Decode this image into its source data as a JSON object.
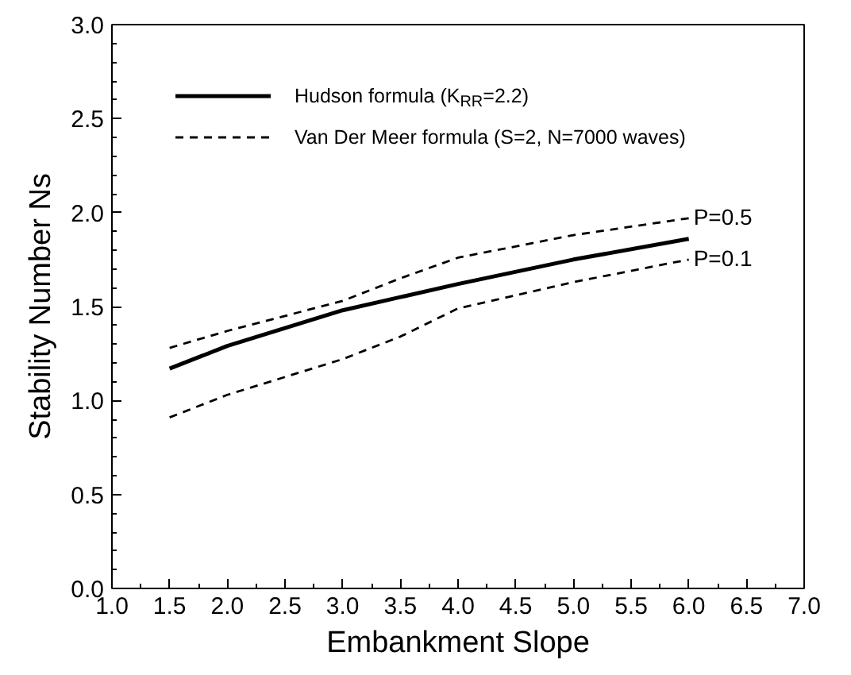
{
  "chart_data": {
    "type": "line",
    "xlabel": "Embankment Slope",
    "ylabel": "Stability Number Ns",
    "x": [
      1.5,
      2.0,
      3.0,
      3.5,
      4.0,
      5.0,
      6.0
    ],
    "series": [
      {
        "name": "Hudson formula (K$_{RR}$=2.2)",
        "color": "#000000",
        "line_style": "solid",
        "values": [
          1.17,
          1.29,
          1.48,
          1.55,
          1.62,
          1.75,
          1.86
        ]
      },
      {
        "name": "Van Der Meer formula (S=2, N=7000 waves)",
        "color": "#000000",
        "line_style": "dashed",
        "values": [
          1.28,
          1.37,
          1.53,
          1.65,
          1.76,
          1.88,
          1.97
        ]
      },
      {
        "color": "#000000",
        "line_style": "dashed",
        "values": [
          0.91,
          1.03,
          1.22,
          1.34,
          1.49,
          1.63,
          1.75
        ]
      }
    ],
    "annotations": [
      {
        "text": "P=0.5",
        "x": 6.0,
        "y": 1.97
      },
      {
        "text": "P=0.1",
        "x": 6.0,
        "y": 1.75
      }
    ],
    "xlim": [
      1.0,
      7.0
    ],
    "xticks": [
      {
        "value": 1.0,
        "label": "1.0"
      },
      1.5,
      {
        "value": 2.0,
        "label": "2.0"
      },
      2.5,
      {
        "value": 3.0,
        "label": "3.0"
      },
      3.5,
      {
        "value": 4.0,
        "label": "4.0"
      },
      4.5,
      {
        "value": 5.0,
        "label": "5.0"
      },
      5.5,
      {
        "value": 6.0,
        "label": "6.0"
      },
      6.5,
      {
        "value": 7.0,
        "label": "7.0"
      }
    ],
    "ylim": [
      0.0,
      3.0
    ],
    "yticks": [
      {
        "value": 0.0,
        "label": "0.0"
      },
      0.5,
      {
        "value": 1.0,
        "label": "1.0"
      },
      1.5,
      {
        "value": 2.0,
        "label": "2.0"
      },
      2.5,
      {
        "value": 3.0,
        "label": "3.0"
      }
    ],
    "grid": false,
    "legend": "top left",
    "marker": "none"
  }
}
